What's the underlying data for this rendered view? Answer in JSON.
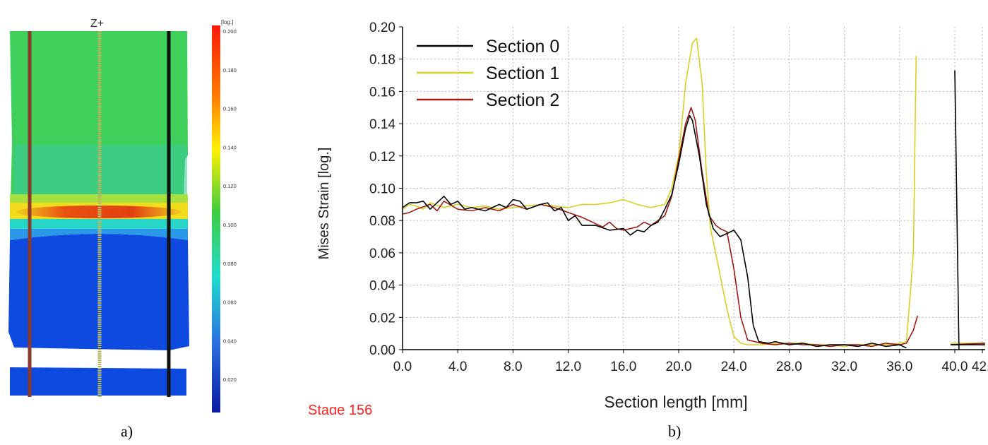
{
  "panel_a": {
    "view_label": "Z+",
    "scale_unit": "[log.]",
    "scale_ticks": [
      "0.200",
      "0.180",
      "0.160",
      "0.140",
      "0.120",
      "0.100",
      "0.080",
      "0.060",
      "0.040",
      "0.020",
      "0.000"
    ],
    "section_colors": [
      "#8b3a2e",
      "#b8b860",
      "#111111"
    ]
  },
  "stage_label": "Stage 156",
  "captions": {
    "a": "a)",
    "b": "b)"
  },
  "chart_data": {
    "type": "line",
    "title": "",
    "xlabel": "Section length [mm]",
    "ylabel": "Mises Strain [log.]",
    "xlim": [
      0,
      42.2
    ],
    "ylim": [
      0,
      0.2
    ],
    "grid": true,
    "legend_position": "top-left",
    "x_ticks": [
      "0.0",
      "4.0",
      "8.0",
      "12.0",
      "16.0",
      "20.0",
      "24.0",
      "28.0",
      "32.0",
      "36.0",
      "40.0",
      "42."
    ],
    "y_ticks": [
      "0.00",
      "0.02",
      "0.04",
      "0.06",
      "0.08",
      "0.10",
      "0.12",
      "0.14",
      "0.16",
      "0.18",
      "0.20"
    ],
    "series": [
      {
        "name": "Section 0",
        "color": "#000000",
        "segments": [
          [
            [
              0,
              0.088
            ],
            [
              0.5,
              0.091
            ],
            [
              1,
              0.091
            ],
            [
              1.5,
              0.092
            ],
            [
              2,
              0.087
            ],
            [
              3,
              0.095
            ],
            [
              3.5,
              0.09
            ],
            [
              4,
              0.092
            ],
            [
              4.5,
              0.087
            ],
            [
              5,
              0.088
            ],
            [
              6,
              0.086
            ],
            [
              7,
              0.09
            ],
            [
              7.5,
              0.088
            ],
            [
              8,
              0.093
            ],
            [
              8.5,
              0.092
            ],
            [
              9,
              0.087
            ],
            [
              10,
              0.09
            ],
            [
              10.5,
              0.091
            ],
            [
              11,
              0.086
            ],
            [
              11.5,
              0.088
            ],
            [
              12,
              0.08
            ],
            [
              12.5,
              0.083
            ],
            [
              13,
              0.077
            ],
            [
              14,
              0.077
            ],
            [
              15,
              0.074
            ],
            [
              16,
              0.075
            ],
            [
              16.5,
              0.071
            ],
            [
              17,
              0.074
            ],
            [
              17.5,
              0.073
            ],
            [
              18,
              0.077
            ],
            [
              18.5,
              0.079
            ],
            [
              19,
              0.087
            ],
            [
              19.5,
              0.096
            ],
            [
              20,
              0.115
            ],
            [
              20.5,
              0.137
            ],
            [
              20.8,
              0.145
            ],
            [
              21,
              0.142
            ],
            [
              21.5,
              0.12
            ],
            [
              22,
              0.09
            ],
            [
              22.5,
              0.075
            ],
            [
              23,
              0.07
            ],
            [
              23.5,
              0.072
            ],
            [
              24,
              0.074
            ],
            [
              24.5,
              0.068
            ],
            [
              25,
              0.045
            ],
            [
              25.4,
              0.015
            ],
            [
              25.8,
              0.005
            ],
            [
              26.5,
              0.004
            ],
            [
              27,
              0.005
            ],
            [
              28,
              0.003
            ],
            [
              29,
              0.004
            ],
            [
              30,
              0.002
            ],
            [
              31,
              0.003
            ],
            [
              32,
              0.003
            ],
            [
              33,
              0.002
            ],
            [
              34,
              0.004
            ],
            [
              35,
              0.002
            ],
            [
              36,
              0.003
            ],
            [
              36.5,
              0.001
            ]
          ],
          [
            [
              40.0,
              0.173
            ],
            [
              40.3,
              0.0
            ]
          ],
          [
            [
              39.7,
              0.003
            ],
            [
              42.2,
              0.003
            ]
          ]
        ]
      },
      {
        "name": "Section 1",
        "color": "#d8d020",
        "segments": [
          [
            [
              0,
              0.087
            ],
            [
              0.5,
              0.09
            ],
            [
              1,
              0.089
            ],
            [
              1.5,
              0.087
            ],
            [
              2,
              0.091
            ],
            [
              3,
              0.088
            ],
            [
              4,
              0.09
            ],
            [
              5,
              0.088
            ],
            [
              6,
              0.089
            ],
            [
              7,
              0.087
            ],
            [
              8,
              0.088
            ],
            [
              9,
              0.089
            ],
            [
              10,
              0.09
            ],
            [
              11,
              0.089
            ],
            [
              12,
              0.088
            ],
            [
              13,
              0.09
            ],
            [
              14,
              0.09
            ],
            [
              15,
              0.091
            ],
            [
              16,
              0.093
            ],
            [
              17,
              0.09
            ],
            [
              18,
              0.088
            ],
            [
              19,
              0.09
            ],
            [
              19.5,
              0.1
            ],
            [
              20,
              0.12
            ],
            [
              20.5,
              0.165
            ],
            [
              21,
              0.19
            ],
            [
              21.3,
              0.193
            ],
            [
              21.7,
              0.165
            ],
            [
              22,
              0.11
            ],
            [
              22.3,
              0.075
            ],
            [
              22.8,
              0.055
            ],
            [
              23.5,
              0.025
            ],
            [
              24,
              0.008
            ],
            [
              24.5,
              0.004
            ],
            [
              25,
              0.003
            ],
            [
              26,
              0.003
            ],
            [
              27,
              0.004
            ],
            [
              28,
              0.004
            ],
            [
              29,
              0.004
            ],
            [
              30,
              0.003
            ],
            [
              31,
              0.003
            ],
            [
              32,
              0.002
            ],
            [
              33,
              0.003
            ],
            [
              34,
              0.003
            ],
            [
              35,
              0.003
            ],
            [
              36,
              0.004
            ],
            [
              36.5,
              0.005
            ],
            [
              37,
              0.06
            ],
            [
              37.2,
              0.182
            ]
          ],
          [
            [
              39.7,
              0.004
            ],
            [
              42.2,
              0.004
            ]
          ]
        ]
      },
      {
        "name": "Section 2",
        "color": "#a01a14",
        "segments": [
          [
            [
              0,
              0.084
            ],
            [
              0.5,
              0.085
            ],
            [
              1,
              0.087
            ],
            [
              2,
              0.09
            ],
            [
              2.5,
              0.086
            ],
            [
              3,
              0.092
            ],
            [
              4,
              0.087
            ],
            [
              5,
              0.086
            ],
            [
              6,
              0.088
            ],
            [
              7,
              0.086
            ],
            [
              8,
              0.09
            ],
            [
              9,
              0.087
            ],
            [
              10,
              0.09
            ],
            [
              11,
              0.088
            ],
            [
              12,
              0.085
            ],
            [
              13,
              0.082
            ],
            [
              14,
              0.078
            ],
            [
              14.5,
              0.076
            ],
            [
              15,
              0.079
            ],
            [
              15.5,
              0.075
            ],
            [
              16,
              0.074
            ],
            [
              17,
              0.076
            ],
            [
              17.5,
              0.079
            ],
            [
              18,
              0.077
            ],
            [
              19,
              0.083
            ],
            [
              19.5,
              0.095
            ],
            [
              20,
              0.118
            ],
            [
              20.5,
              0.14
            ],
            [
              20.9,
              0.15
            ],
            [
              21.2,
              0.142
            ],
            [
              21.7,
              0.11
            ],
            [
              22.2,
              0.083
            ],
            [
              22.7,
              0.077
            ],
            [
              23,
              0.075
            ],
            [
              23.5,
              0.073
            ],
            [
              24,
              0.05
            ],
            [
              24.5,
              0.02
            ],
            [
              25,
              0.006
            ],
            [
              26,
              0.004
            ],
            [
              27,
              0.003
            ],
            [
              28,
              0.004
            ],
            [
              29,
              0.003
            ],
            [
              30,
              0.003
            ],
            [
              31,
              0.002
            ],
            [
              32,
              0.003
            ],
            [
              33,
              0.003
            ],
            [
              34,
              0.002
            ],
            [
              35,
              0.004
            ],
            [
              36,
              0.003
            ],
            [
              36.5,
              0.004
            ],
            [
              37,
              0.012
            ],
            [
              37.3,
              0.021
            ]
          ],
          [
            [
              39.7,
              0.003
            ],
            [
              42.2,
              0.004
            ]
          ]
        ]
      }
    ]
  }
}
